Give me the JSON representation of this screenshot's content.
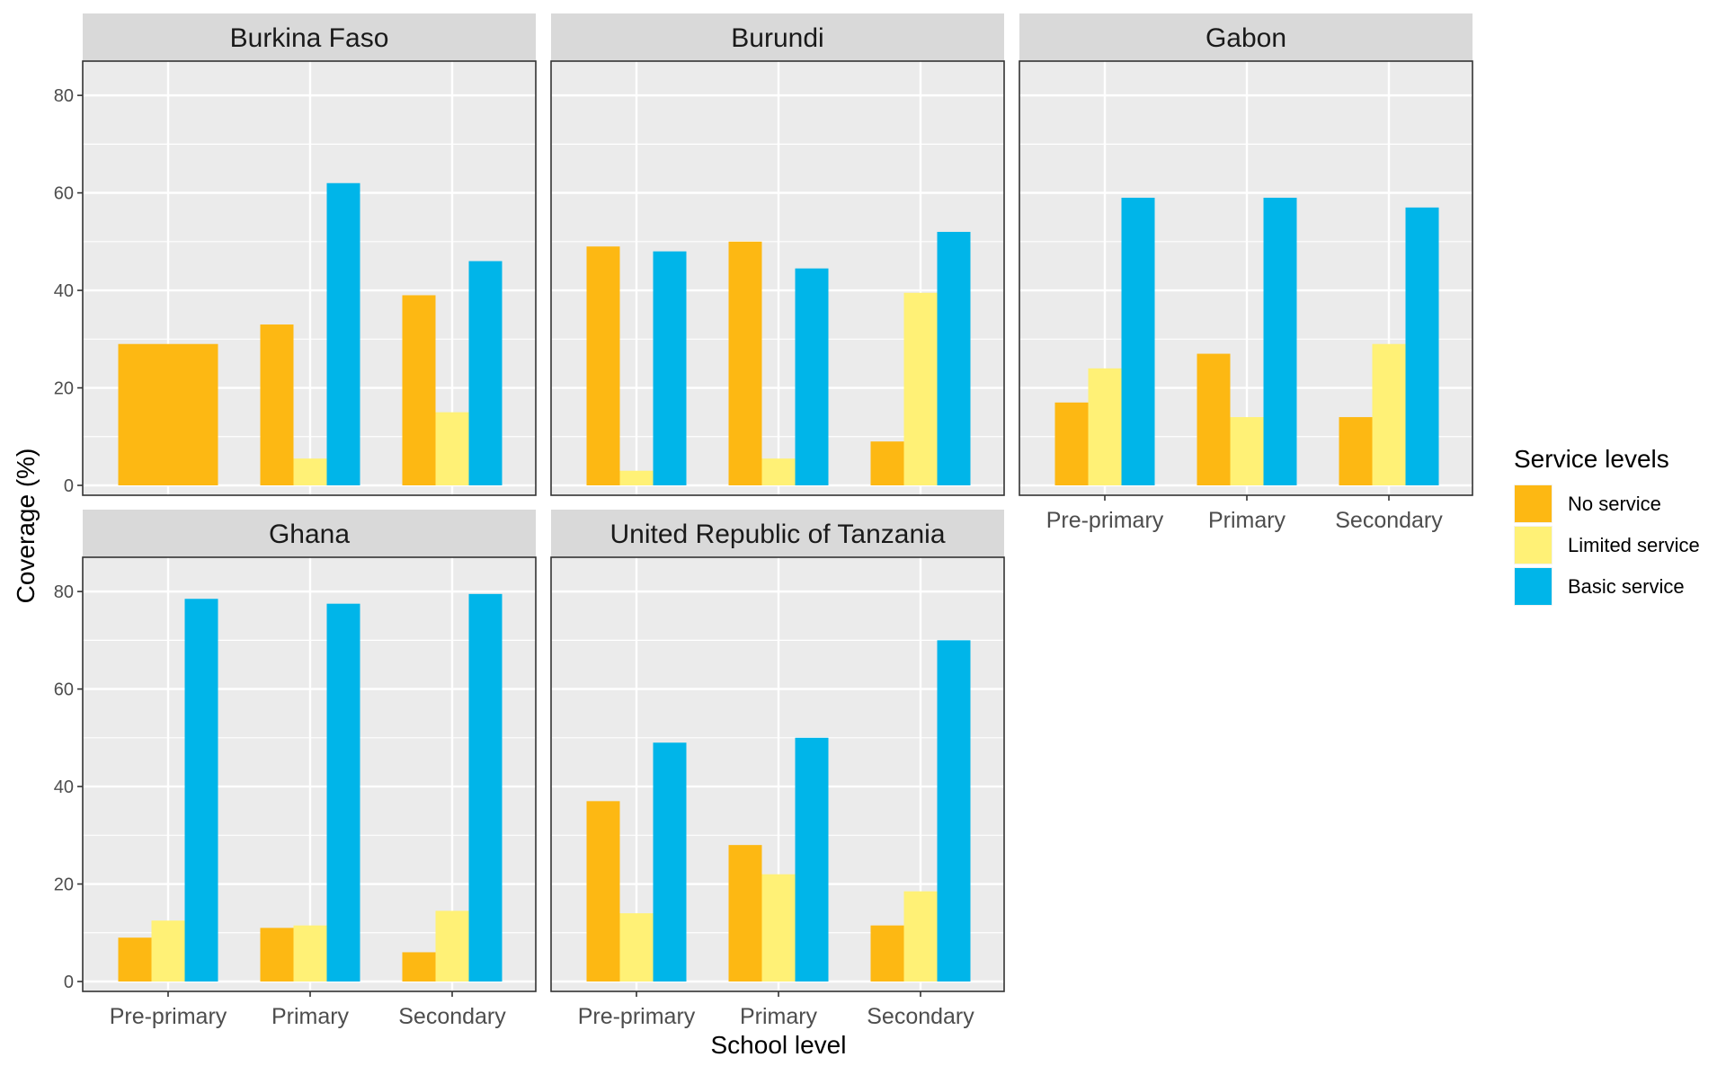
{
  "chart_data": {
    "type": "bar",
    "xlabel": "School level",
    "ylabel": "Coverage (%)",
    "ylim": [
      0,
      85
    ],
    "yticks": [
      0,
      20,
      40,
      60,
      80
    ],
    "categories": [
      "Pre-primary",
      "Primary",
      "Secondary"
    ],
    "legend": {
      "title": "Service levels",
      "placement": "right",
      "items": [
        {
          "name": "No service",
          "color": "#FDB813"
        },
        {
          "name": "Limited service",
          "color": "#FFF176"
        },
        {
          "name": "Basic service",
          "color": "#00B5E9"
        }
      ]
    },
    "panels": [
      {
        "country": "Burkina Faso",
        "series": [
          {
            "name": "No service",
            "values": [
              29,
              33,
              39
            ]
          },
          {
            "name": "Limited service",
            "values": [
              null,
              5.5,
              15
            ]
          },
          {
            "name": "Basic service",
            "values": [
              null,
              62,
              46
            ]
          }
        ]
      },
      {
        "country": "Burundi",
        "series": [
          {
            "name": "No service",
            "values": [
              49,
              50,
              9
            ]
          },
          {
            "name": "Limited service",
            "values": [
              3,
              5.5,
              39.5
            ]
          },
          {
            "name": "Basic service",
            "values": [
              48,
              44.5,
              52
            ]
          }
        ]
      },
      {
        "country": "Gabon",
        "series": [
          {
            "name": "No service",
            "values": [
              17,
              27,
              14
            ]
          },
          {
            "name": "Limited service",
            "values": [
              24,
              14,
              29
            ]
          },
          {
            "name": "Basic service",
            "values": [
              59,
              59,
              57
            ]
          }
        ]
      },
      {
        "country": "Ghana",
        "series": [
          {
            "name": "No service",
            "values": [
              9,
              11,
              6
            ]
          },
          {
            "name": "Limited service",
            "values": [
              12.5,
              11.5,
              14.5
            ]
          },
          {
            "name": "Basic service",
            "values": [
              78.5,
              77.5,
              79.5
            ]
          }
        ]
      },
      {
        "country": "United Republic of Tanzania",
        "series": [
          {
            "name": "No service",
            "values": [
              37,
              28,
              11.5
            ]
          },
          {
            "name": "Limited service",
            "values": [
              14,
              22,
              18.5
            ]
          },
          {
            "name": "Basic service",
            "values": [
              49,
              50,
              70
            ]
          }
        ]
      }
    ]
  }
}
